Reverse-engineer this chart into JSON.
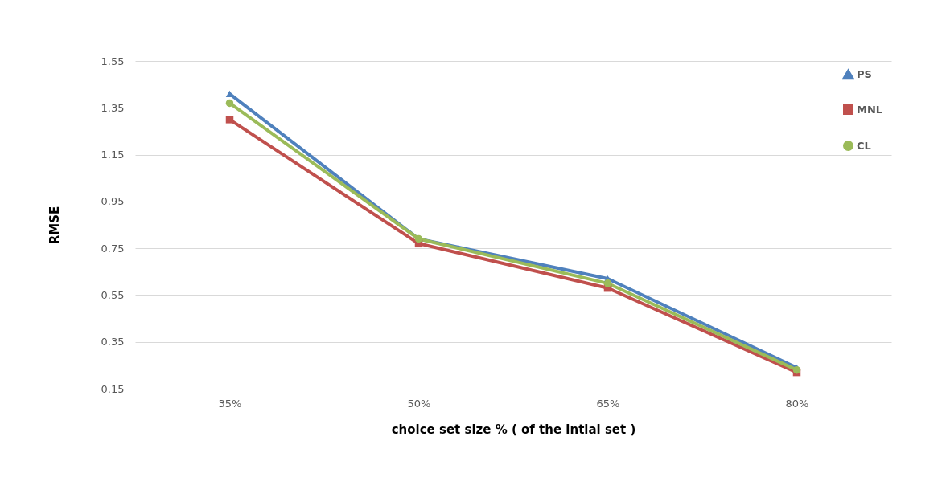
{
  "chart_data": {
    "type": "line",
    "xlabel": "choice set size % ( of the intial set )",
    "ylabel": "RMSE",
    "categories": [
      "35%",
      "50%",
      "65%",
      "80%"
    ],
    "series": [
      {
        "name": "PS",
        "color": "#4f81bd",
        "marker": "triangle",
        "values": [
          1.41,
          0.79,
          0.62,
          0.24
        ]
      },
      {
        "name": "MNL",
        "color": "#c0504d",
        "marker": "square",
        "values": [
          1.3,
          0.77,
          0.58,
          0.22
        ]
      },
      {
        "name": "CL",
        "color": "#9bbb59",
        "marker": "circle",
        "values": [
          1.37,
          0.79,
          0.6,
          0.23
        ]
      }
    ],
    "ylim": [
      0.15,
      1.55
    ],
    "yticks": [
      0.15,
      0.35,
      0.55,
      0.75,
      0.95,
      1.15,
      1.35,
      1.55
    ],
    "grid": "y",
    "legend": "top right"
  }
}
